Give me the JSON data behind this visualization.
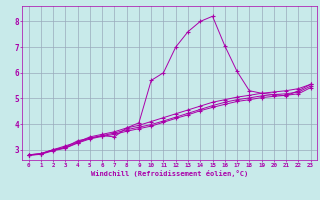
{
  "xlabel": "Windchill (Refroidissement éolien,°C)",
  "bg_color": "#c8eaea",
  "line_color": "#aa00aa",
  "grid_color": "#99aabb",
  "xlim": [
    -0.5,
    23.5
  ],
  "ylim": [
    2.6,
    8.6
  ],
  "xticks": [
    0,
    1,
    2,
    3,
    4,
    5,
    6,
    7,
    8,
    9,
    10,
    11,
    12,
    13,
    14,
    15,
    16,
    17,
    18,
    19,
    20,
    21,
    22,
    23
  ],
  "yticks": [
    3,
    4,
    5,
    6,
    7,
    8
  ],
  "series": [
    {
      "x": [
        0,
        1,
        2,
        3,
        4,
        5,
        6,
        7,
        8,
        9,
        10,
        11,
        12,
        13,
        14,
        15,
        16,
        17,
        18,
        19,
        20,
        21,
        22,
        23
      ],
      "y": [
        2.8,
        2.85,
        3.0,
        3.1,
        3.35,
        3.45,
        3.55,
        3.5,
        3.85,
        4.05,
        5.7,
        6.0,
        7.0,
        7.6,
        8.0,
        8.2,
        7.05,
        6.05,
        5.3,
        5.2,
        5.15,
        5.1,
        5.3,
        5.55
      ]
    },
    {
      "x": [
        0,
        1,
        2,
        3,
        4,
        5,
        6,
        7,
        8,
        9,
        10,
        11,
        12,
        13,
        14,
        15,
        16,
        17,
        18,
        19,
        20,
        21,
        22,
        23
      ],
      "y": [
        2.8,
        2.85,
        3.0,
        3.15,
        3.3,
        3.5,
        3.6,
        3.7,
        3.85,
        3.95,
        4.1,
        4.25,
        4.4,
        4.55,
        4.7,
        4.85,
        4.95,
        5.05,
        5.12,
        5.2,
        5.25,
        5.3,
        5.38,
        5.55
      ]
    },
    {
      "x": [
        0,
        1,
        2,
        3,
        4,
        5,
        6,
        7,
        8,
        9,
        10,
        11,
        12,
        13,
        14,
        15,
        16,
        17,
        18,
        19,
        20,
        21,
        22,
        23
      ],
      "y": [
        2.78,
        2.84,
        2.98,
        3.08,
        3.28,
        3.45,
        3.55,
        3.65,
        3.78,
        3.88,
        3.98,
        4.12,
        4.27,
        4.42,
        4.57,
        4.72,
        4.85,
        4.95,
        5.02,
        5.1,
        5.15,
        5.18,
        5.25,
        5.48
      ]
    },
    {
      "x": [
        0,
        1,
        2,
        3,
        4,
        5,
        6,
        7,
        8,
        9,
        10,
        11,
        12,
        13,
        14,
        15,
        16,
        17,
        18,
        19,
        20,
        21,
        22,
        23
      ],
      "y": [
        2.78,
        2.82,
        2.96,
        3.06,
        3.26,
        3.42,
        3.52,
        3.6,
        3.72,
        3.82,
        3.92,
        4.07,
        4.22,
        4.36,
        4.52,
        4.65,
        4.77,
        4.88,
        4.95,
        5.03,
        5.08,
        5.12,
        5.18,
        5.42
      ]
    }
  ]
}
